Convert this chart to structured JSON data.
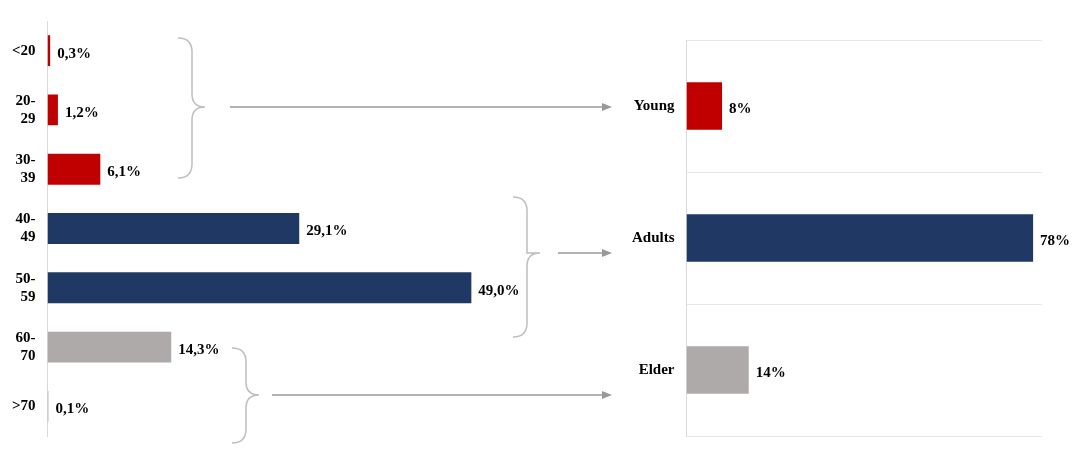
{
  "chart_data": [
    {
      "type": "bar",
      "orientation": "horizontal",
      "categories": [
        "<20",
        "20-29",
        "30-39",
        "40-49",
        "50-59",
        "60-70",
        ">70"
      ],
      "values": [
        0.3,
        1.2,
        6.1,
        29.1,
        49.0,
        14.3,
        0.1
      ],
      "colors": [
        "#c00000",
        "#c00000",
        "#c00000",
        "#1f3864",
        "#1f3864",
        "#aeaaaa",
        "#aeaaaa"
      ],
      "value_labels": [
        "0,3%",
        "1,2%",
        "6,1%",
        "29,1%",
        "49,0%",
        "14,3%",
        "0,1%"
      ],
      "tick_labels": "y",
      "grid": false
    },
    {
      "type": "bar",
      "orientation": "horizontal",
      "categories": [
        "Young",
        "Adults",
        "Elder"
      ],
      "values": [
        8,
        78,
        14
      ],
      "colors": [
        "#c00000",
        "#1f3864",
        "#aeaaaa"
      ],
      "value_labels": [
        "8%",
        "78%",
        "14%"
      ],
      "tick_labels": "y",
      "grid": "y"
    }
  ]
}
